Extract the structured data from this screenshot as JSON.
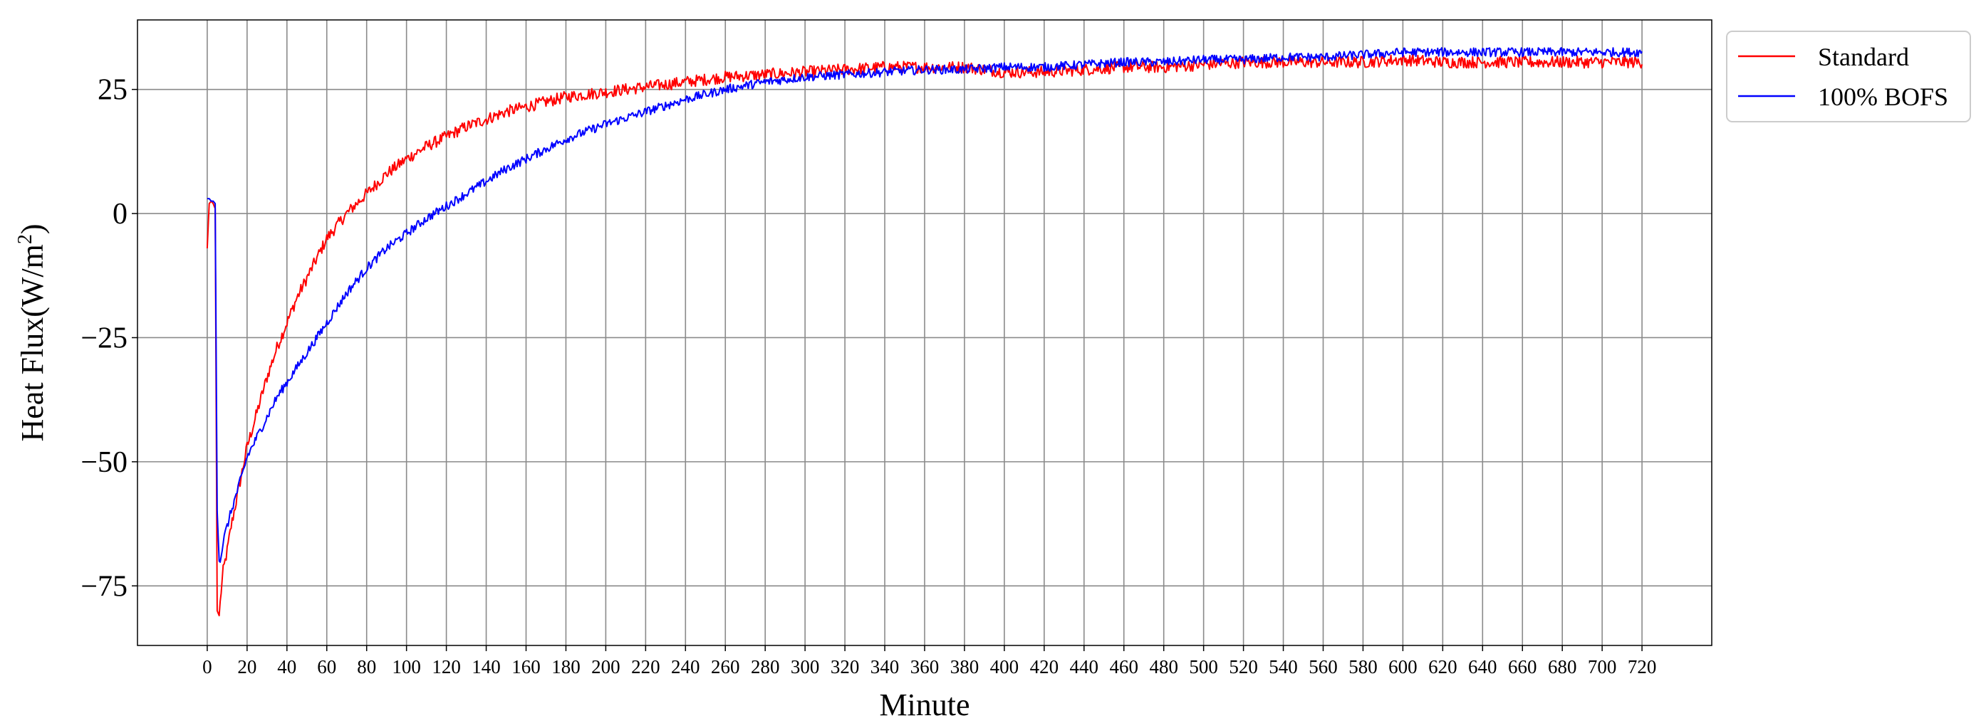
{
  "chart_data": {
    "type": "line",
    "title": "",
    "xlabel": "Minute",
    "ylabel": "Heat Flux(W/m²)",
    "ylabel_main": "Heat Flux(W/m",
    "ylabel_sup": "2",
    "ylabel_close": ")",
    "xlim": [
      -35,
      755
    ],
    "ylim": [
      -87,
      39
    ],
    "x_ticks": [
      0,
      20,
      40,
      60,
      80,
      100,
      120,
      140,
      160,
      180,
      200,
      220,
      240,
      260,
      280,
      300,
      320,
      340,
      360,
      380,
      400,
      420,
      440,
      460,
      480,
      500,
      520,
      540,
      560,
      580,
      600,
      620,
      640,
      660,
      680,
      700,
      720
    ],
    "x_tick_labels": [
      "0",
      "20",
      "40",
      "60",
      "80",
      "100",
      "120",
      "140",
      "160",
      "180",
      "200",
      "220",
      "240",
      "260",
      "280",
      "300",
      "320",
      "340",
      "360",
      "380",
      "400",
      "420",
      "440",
      "460",
      "480",
      "500",
      "520",
      "540",
      "560",
      "580",
      "600",
      "620",
      "640",
      "660",
      "680",
      "700",
      "720"
    ],
    "y_ticks": [
      25,
      0,
      -25,
      -50,
      -75
    ],
    "y_tick_labels": [
      "25",
      "0",
      "−25",
      "−50",
      "−75"
    ],
    "grid": true,
    "legend_position": "outside-top-right",
    "series": [
      {
        "name": "Standard",
        "color": "#ff0000",
        "noise_amplitude": 1.2,
        "x": [
          0,
          1,
          2,
          3,
          4,
          5,
          6,
          7,
          8,
          10,
          12,
          15,
          18,
          20,
          25,
          30,
          35,
          40,
          45,
          50,
          55,
          60,
          70,
          80,
          90,
          100,
          110,
          120,
          130,
          140,
          150,
          160,
          170,
          180,
          190,
          200,
          220,
          240,
          260,
          280,
          300,
          320,
          340,
          360,
          380,
          400,
          420,
          440,
          460,
          480,
          500,
          520,
          540,
          560,
          580,
          600,
          620,
          640,
          660,
          680,
          700,
          720
        ],
        "y": [
          -7,
          2,
          2.5,
          2,
          1,
          -80,
          -81,
          -76,
          -72,
          -68,
          -63,
          -57,
          -51,
          -47,
          -40,
          -33,
          -27,
          -22,
          -17,
          -13,
          -9,
          -5,
          0,
          4,
          8,
          11,
          13.5,
          15.5,
          17.5,
          19,
          20.5,
          21.5,
          22.5,
          23.5,
          24,
          24.5,
          25.5,
          26.5,
          27.5,
          28,
          28.5,
          29,
          29.5,
          29.5,
          29.5,
          28.5,
          28.5,
          29,
          29.5,
          29.5,
          30,
          30.5,
          30.5,
          30.5,
          30.5,
          31,
          30.5,
          30.5,
          30.5,
          30.5,
          30.5,
          30.5
        ]
      },
      {
        "name": "100% BOFS",
        "color": "#0000ff",
        "noise_amplitude": 0.9,
        "x": [
          0,
          1,
          2,
          3,
          4,
          5,
          6,
          7,
          8,
          10,
          12,
          15,
          18,
          20,
          25,
          30,
          35,
          40,
          45,
          50,
          55,
          60,
          70,
          80,
          90,
          100,
          110,
          120,
          130,
          140,
          150,
          160,
          170,
          180,
          190,
          200,
          220,
          240,
          260,
          280,
          300,
          320,
          340,
          360,
          380,
          400,
          420,
          440,
          460,
          480,
          500,
          520,
          540,
          560,
          580,
          600,
          620,
          640,
          660,
          680,
          700,
          720
        ],
        "y": [
          3,
          3,
          2.5,
          2.5,
          2,
          -60,
          -70,
          -69,
          -66,
          -63,
          -60,
          -56,
          -52,
          -49,
          -45,
          -41,
          -37,
          -34,
          -31,
          -28,
          -25,
          -22,
          -16,
          -11,
          -7,
          -4,
          -1,
          1.5,
          4,
          6.5,
          9,
          11,
          13,
          15,
          16.5,
          18,
          20.5,
          23,
          25,
          26.5,
          27.5,
          28,
          28.5,
          29,
          29,
          29.5,
          29.5,
          30,
          30.5,
          30.5,
          31,
          31,
          31.5,
          31.5,
          32,
          32.5,
          32.5,
          32.5,
          32.5,
          32.5,
          32.5,
          32.5
        ]
      }
    ]
  }
}
